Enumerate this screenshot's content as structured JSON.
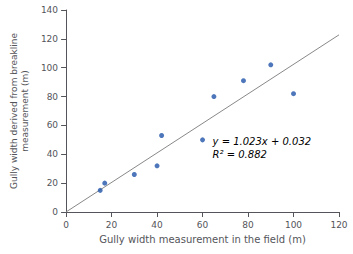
{
  "chart_data": {
    "type": "scatter",
    "xlabel": "Gully width measurement in the field (m)",
    "ylabel": "Gully width derived from breakline\nmeasurement (m)",
    "annotations": [
      "y = 1.023x + 0.032",
      "R² = 0.882"
    ],
    "series": [
      {
        "type": "line",
        "color": "#888888",
        "x": [
          0,
          120
        ],
        "values": [
          0.032,
          122.792
        ]
      },
      {
        "type": "scatter",
        "color": "#2255aa",
        "x": [
          15,
          17,
          30,
          40,
          42,
          60,
          65,
          78,
          90,
          100
        ],
        "values": [
          15,
          20,
          26,
          32,
          53,
          50,
          80,
          91,
          102,
          82
        ]
      }
    ],
    "xlim": [
      0,
      120
    ],
    "ylim": [
      0,
      140
    ],
    "xticks": [
      0,
      20,
      40,
      60,
      80,
      100,
      120
    ],
    "yticks": [
      0,
      20,
      40,
      60,
      80,
      100,
      120,
      140
    ],
    "grid": false
  }
}
